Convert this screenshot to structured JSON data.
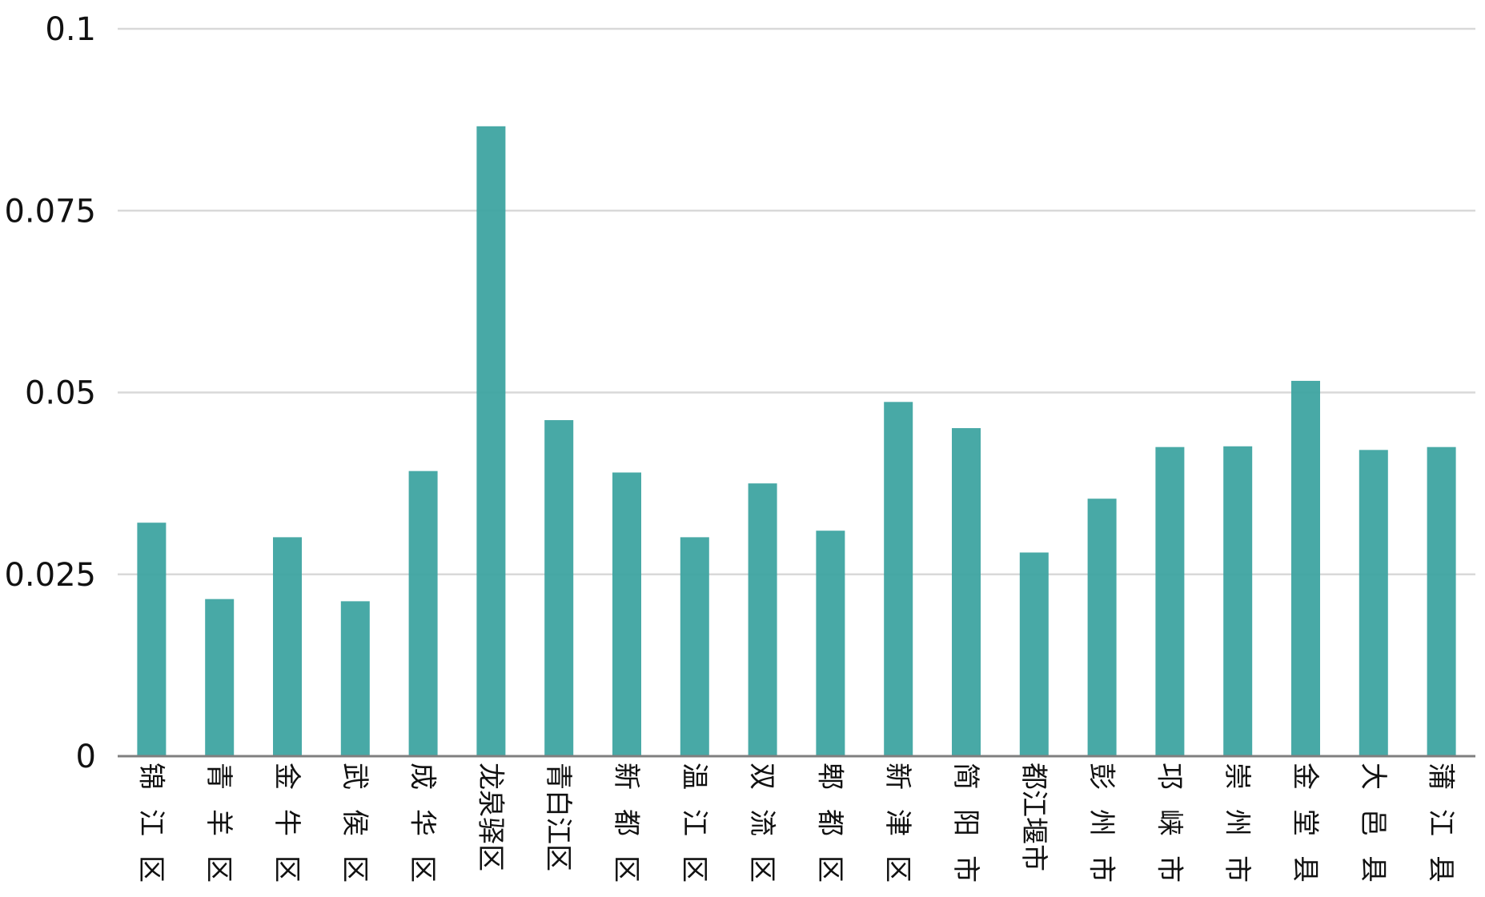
{
  "chart_data": {
    "type": "bar",
    "title": "",
    "xlabel": "",
    "ylabel": "",
    "ylim": [
      0,
      0.1
    ],
    "yticks": [
      0,
      0.025,
      0.05,
      0.075,
      0.1
    ],
    "ytick_labels": [
      "0",
      "0.025",
      "0.05",
      "0.075",
      "0.1"
    ],
    "grid": true,
    "legend": "none",
    "categories": [
      "锦江区",
      "青羊区",
      "金牛区",
      "武侯区",
      "成华区",
      "龙泉驿区",
      "青白江区",
      "新都区",
      "温江区",
      "双流区",
      "郫都区",
      "新津区",
      "简阳市",
      "都江堰市",
      "彭州市",
      "邛崃市",
      "崇州市",
      "金堂县",
      "大邑县",
      "蒲江县"
    ],
    "values": [
      0.0321,
      0.0216,
      0.0301,
      0.0213,
      0.0392,
      0.0866,
      0.0462,
      0.039,
      0.0301,
      0.0375,
      0.031,
      0.0487,
      0.0451,
      0.028,
      0.0354,
      0.0425,
      0.0426,
      0.0516,
      0.0421,
      0.0425
    ],
    "colors": {
      "bar": "#3aa39f",
      "grid": "#d9d9d9",
      "axis": "#7f7f7f",
      "text": "#111111"
    }
  }
}
